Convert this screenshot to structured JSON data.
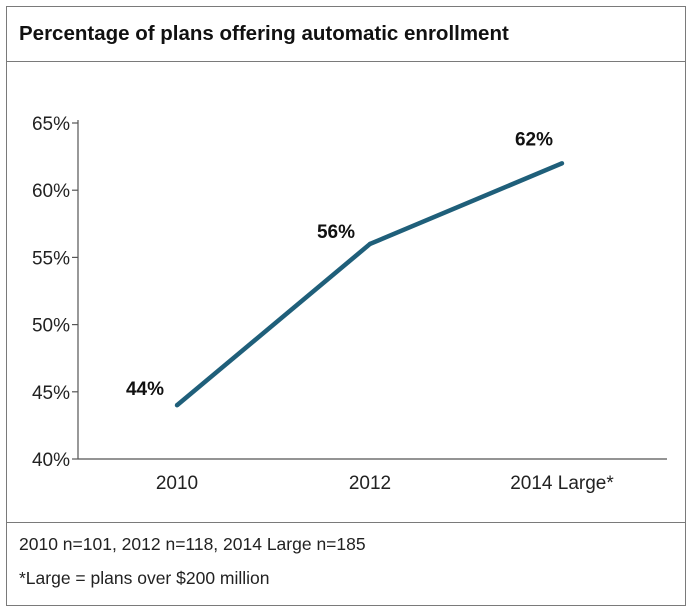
{
  "chart_data": {
    "type": "line",
    "title": "Percentage of plans offering automatic enrollment",
    "xlabel": "",
    "ylabel": "",
    "categories": [
      "2010",
      "2012",
      "2014 Large*"
    ],
    "values": [
      44,
      56,
      62
    ],
    "data_labels": [
      "44%",
      "56%",
      "62%"
    ],
    "ylim": [
      40,
      65
    ],
    "yticks": [
      40,
      45,
      50,
      55,
      60,
      65
    ],
    "ytick_labels": [
      "40%",
      "45%",
      "50%",
      "55%",
      "60%",
      "65%"
    ],
    "grid": false,
    "legend": "none",
    "line_color": "#1f5f7a"
  },
  "footnotes": [
    "2010 n=101, 2012 n=118, 2014 Large n=185",
    "*Large = plans over $200 million"
  ]
}
